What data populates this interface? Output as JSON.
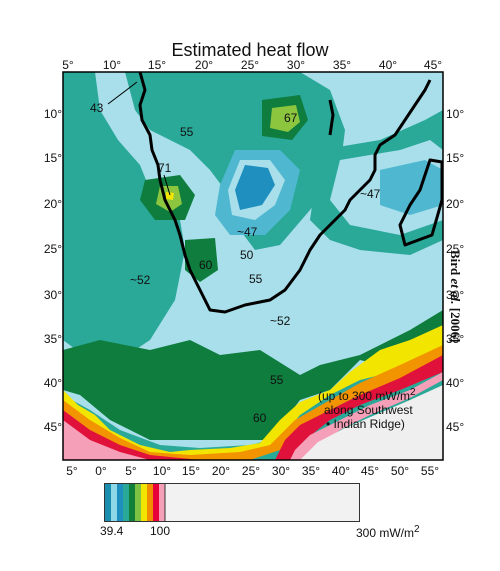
{
  "title": "Estimated heat flow",
  "credit": {
    "author": "Bird",
    "etal": "et al.",
    "year": "[2006]"
  },
  "axes": {
    "top_ticks": [
      "5°",
      "10°",
      "15°",
      "20°",
      "25°",
      "30°",
      "35°",
      "40°",
      "45°"
    ],
    "bottom_ticks": [
      "5°",
      "0°",
      "5°",
      "10°",
      "15°",
      "20°",
      "25°",
      "30°",
      "35°",
      "40°",
      "45°",
      "50°",
      "55°"
    ],
    "left_ticks": [
      "10°",
      "15°",
      "20°",
      "25°",
      "30°",
      "35°",
      "40°",
      "45°"
    ],
    "right_ticks": [
      "10°",
      "15°",
      "20°",
      "25°",
      "30°",
      "35°",
      "40°",
      "45°"
    ]
  },
  "map_labels": {
    "l43": "43",
    "l55a": "55",
    "l67": "67",
    "l71": "71",
    "l47a": "~47",
    "l47b": "~47",
    "l50": "50",
    "l60a": "60",
    "l55b": "55",
    "l52a": "~52",
    "l52b": "~52",
    "l55c": "55",
    "l60b": "60"
  },
  "note": {
    "line1": "(up to 300 mW/m",
    "line1_sup": "2",
    "line2": "along Southwest",
    "line3": "Indian Ridge)"
  },
  "legend": {
    "min": "39.4",
    "mid": "100",
    "max": "300 mW/m",
    "max_sup": "2",
    "swatches": [
      "#1a8fb0",
      "#8fd8e8",
      "#2aa898",
      "#0f7f3a",
      "#7dc242",
      "#f2e600",
      "#f28c00",
      "#e8003a",
      "#f5a0b8",
      "#f2f2f2"
    ]
  },
  "colors": {
    "light_blue": "#a8dfea",
    "cyan": "#4fb8d0",
    "blue": "#1f8fbf",
    "teal": "#2aa898",
    "dark_green": "#0e7d3e",
    "green": "#33a04a",
    "lime": "#8cc63f",
    "yellow": "#f2e600",
    "orange": "#f29400",
    "red": "#e0123c",
    "pink": "#f5a0b8",
    "gray": "#efefef",
    "coast": "#000000"
  }
}
